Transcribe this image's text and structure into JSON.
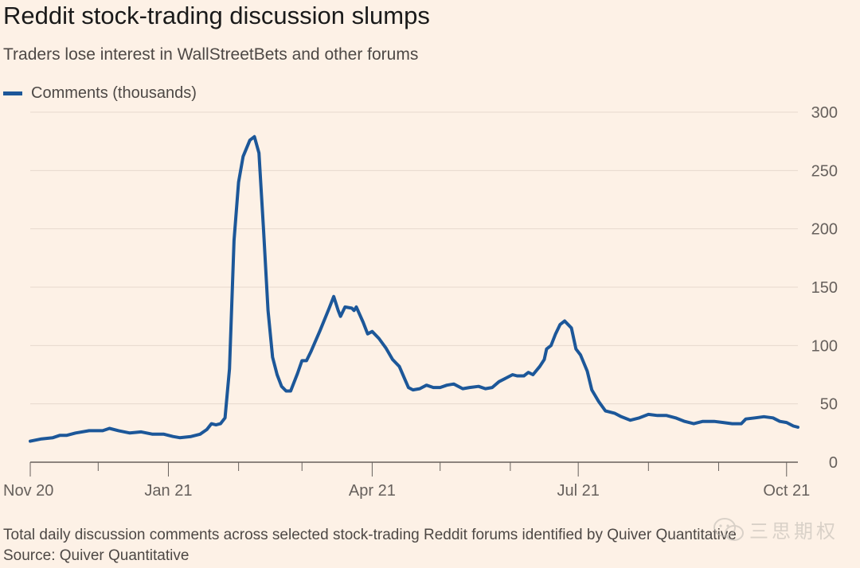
{
  "title": "Reddit stock-trading discussion slumps",
  "subtitle": "Traders lose interest in WallStreetBets and other forums",
  "footnote": "Total daily discussion comments across selected stock-trading Reddit forums identified by Quiver Quantitative",
  "source": "Source: Quiver Quantitative",
  "watermark": "三思期权",
  "colors": {
    "background": "#fdf1e6",
    "line": "#1c5799",
    "grid": "#e6d9ce",
    "axis": "#66605c"
  },
  "chart_data": {
    "type": "line",
    "title": "Reddit stock-trading discussion slumps",
    "xlabel": "",
    "ylabel": "",
    "legend_position": "top-left",
    "grid": true,
    "y_axis_side": "right",
    "ylim": [
      0,
      300
    ],
    "yticks": [
      0,
      50,
      100,
      150,
      200,
      250,
      300
    ],
    "xlim": [
      "2020-11-01",
      "2021-10-06"
    ],
    "x_tick_labels": [
      {
        "date": "2020-11-01",
        "label": "Nov 20"
      },
      {
        "date": "2021-01-01",
        "label": "Jan 21"
      },
      {
        "date": "2021-04-01",
        "label": "Apr 21"
      },
      {
        "date": "2021-07-01",
        "label": "Jul 21"
      },
      {
        "date": "2021-10-01",
        "label": "Oct 21"
      }
    ],
    "x_minor_ticks": [
      "2020-12-01",
      "2021-02-01",
      "2021-03-01",
      "2021-05-01",
      "2021-06-01",
      "2021-08-01",
      "2021-09-01"
    ],
    "series": [
      {
        "name": "Comments (thousands)",
        "color": "#1c5799",
        "points": [
          [
            "2020-11-01",
            18
          ],
          [
            "2020-11-06",
            20
          ],
          [
            "2020-11-11",
            21
          ],
          [
            "2020-11-14",
            23
          ],
          [
            "2020-11-17",
            23
          ],
          [
            "2020-11-21",
            25
          ],
          [
            "2020-11-27",
            27
          ],
          [
            "2020-12-03",
            27
          ],
          [
            "2020-12-06",
            29
          ],
          [
            "2020-12-10",
            27
          ],
          [
            "2020-12-15",
            25
          ],
          [
            "2020-12-20",
            26
          ],
          [
            "2020-12-25",
            24
          ],
          [
            "2020-12-30",
            24
          ],
          [
            "2021-01-03",
            22
          ],
          [
            "2021-01-06",
            21
          ],
          [
            "2021-01-11",
            22
          ],
          [
            "2021-01-15",
            24
          ],
          [
            "2021-01-18",
            28
          ],
          [
            "2021-01-20",
            33
          ],
          [
            "2021-01-22",
            32
          ],
          [
            "2021-01-24",
            33
          ],
          [
            "2021-01-26",
            38
          ],
          [
            "2021-01-28",
            80
          ],
          [
            "2021-01-30",
            190
          ],
          [
            "2021-02-01",
            240
          ],
          [
            "2021-02-03",
            262
          ],
          [
            "2021-02-06",
            276
          ],
          [
            "2021-02-08",
            279
          ],
          [
            "2021-02-10",
            265
          ],
          [
            "2021-02-12",
            200
          ],
          [
            "2021-02-14",
            130
          ],
          [
            "2021-02-16",
            90
          ],
          [
            "2021-02-18",
            75
          ],
          [
            "2021-02-20",
            65
          ],
          [
            "2021-02-22",
            61
          ],
          [
            "2021-02-24",
            61
          ],
          [
            "2021-02-27",
            76
          ],
          [
            "2021-03-01",
            87
          ],
          [
            "2021-03-03",
            87
          ],
          [
            "2021-03-05",
            95
          ],
          [
            "2021-03-09",
            113
          ],
          [
            "2021-03-13",
            132
          ],
          [
            "2021-03-15",
            142
          ],
          [
            "2021-03-17",
            130
          ],
          [
            "2021-03-18",
            125
          ],
          [
            "2021-03-20",
            133
          ],
          [
            "2021-03-23",
            132
          ],
          [
            "2021-03-24",
            130
          ],
          [
            "2021-03-25",
            133
          ],
          [
            "2021-03-28",
            120
          ],
          [
            "2021-03-30",
            110
          ],
          [
            "2021-04-01",
            112
          ],
          [
            "2021-04-04",
            106
          ],
          [
            "2021-04-07",
            98
          ],
          [
            "2021-04-10",
            88
          ],
          [
            "2021-04-13",
            82
          ],
          [
            "2021-04-15",
            73
          ],
          [
            "2021-04-17",
            64
          ],
          [
            "2021-04-19",
            62
          ],
          [
            "2021-04-22",
            63
          ],
          [
            "2021-04-25",
            66
          ],
          [
            "2021-04-28",
            64
          ],
          [
            "2021-05-01",
            64
          ],
          [
            "2021-05-04",
            66
          ],
          [
            "2021-05-07",
            67
          ],
          [
            "2021-05-11",
            63
          ],
          [
            "2021-05-14",
            64
          ],
          [
            "2021-05-18",
            65
          ],
          [
            "2021-05-21",
            63
          ],
          [
            "2021-05-24",
            64
          ],
          [
            "2021-05-27",
            69
          ],
          [
            "2021-05-30",
            72
          ],
          [
            "2021-06-02",
            75
          ],
          [
            "2021-06-04",
            74
          ],
          [
            "2021-06-07",
            74
          ],
          [
            "2021-06-09",
            77
          ],
          [
            "2021-06-11",
            75
          ],
          [
            "2021-06-14",
            82
          ],
          [
            "2021-06-16",
            88
          ],
          [
            "2021-06-17",
            97
          ],
          [
            "2021-06-19",
            100
          ],
          [
            "2021-06-21",
            110
          ],
          [
            "2021-06-23",
            118
          ],
          [
            "2021-06-25",
            121
          ],
          [
            "2021-06-28",
            115
          ],
          [
            "2021-06-30",
            97
          ],
          [
            "2021-07-02",
            92
          ],
          [
            "2021-07-05",
            78
          ],
          [
            "2021-07-07",
            62
          ],
          [
            "2021-07-10",
            52
          ],
          [
            "2021-07-13",
            44
          ],
          [
            "2021-07-17",
            42
          ],
          [
            "2021-07-20",
            39
          ],
          [
            "2021-07-24",
            36
          ],
          [
            "2021-07-28",
            38
          ],
          [
            "2021-08-01",
            41
          ],
          [
            "2021-08-05",
            40
          ],
          [
            "2021-08-09",
            40
          ],
          [
            "2021-08-13",
            38
          ],
          [
            "2021-08-17",
            35
          ],
          [
            "2021-08-21",
            33
          ],
          [
            "2021-08-25",
            35
          ],
          [
            "2021-08-30",
            35
          ],
          [
            "2021-09-03",
            34
          ],
          [
            "2021-09-07",
            33
          ],
          [
            "2021-09-11",
            33
          ],
          [
            "2021-09-13",
            37
          ],
          [
            "2021-09-17",
            38
          ],
          [
            "2021-09-21",
            39
          ],
          [
            "2021-09-25",
            38
          ],
          [
            "2021-09-28",
            35
          ],
          [
            "2021-10-01",
            34
          ],
          [
            "2021-10-04",
            31
          ],
          [
            "2021-10-06",
            30
          ]
        ]
      }
    ]
  }
}
